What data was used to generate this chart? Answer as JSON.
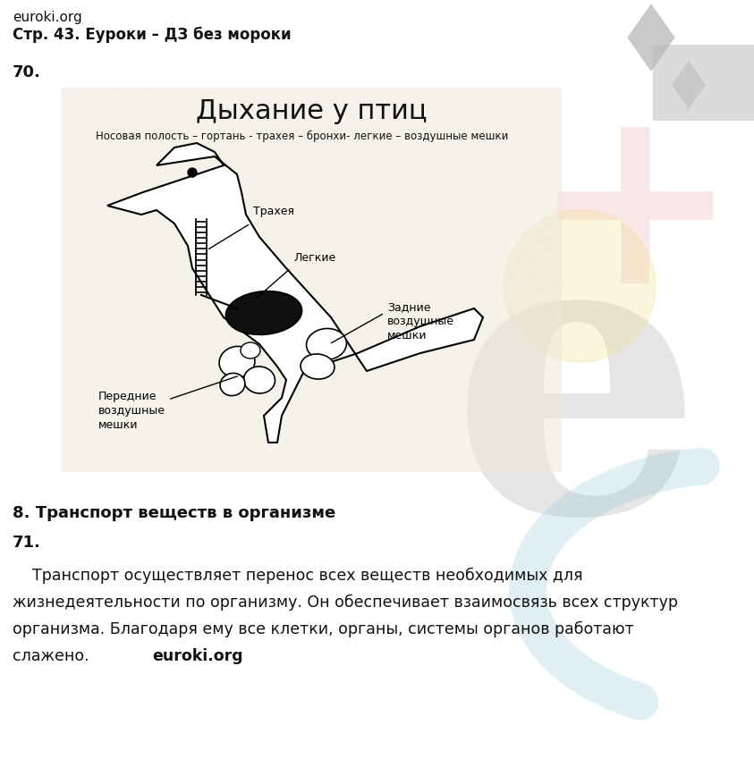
{
  "bg_color": "#ffffff",
  "header_line1": "euroki.org",
  "header_line2": "Стр. 43. Еуроки – ДЗ без мороки",
  "number1": "70.",
  "diagram_title": "Дыхание у птиц",
  "diagram_subtitle": "Носовая полость – гортань - трахея – бронхи- легкие – воздушные мешки",
  "label_trachea": "Трахея",
  "label_lungs": "Легкие",
  "label_rear_air_sacs": "Задние\nвоздушные\nмешки",
  "label_front_air_sacs": "Передние\nвоздушные\nмешки",
  "section_title": "8. Транспорт веществ в организме",
  "number2": "71.",
  "para_line1": "    Транспорт осуществляет перенос всех веществ необходимых для",
  "para_line2": "жизнедеятельности по организму. Он обеспечивает взаимосвязь всех структур",
  "para_line3": "организма. Благодаря ему все клетки, органы, системы органов работают",
  "para_line4": "слажено.",
  "euroki_bold": "euroki.org",
  "wm_e_color": "#c8c8c8",
  "wm_diamond_color": "#b8b8b8",
  "box_bg": "#f0ebe0",
  "text_color": "#111111"
}
